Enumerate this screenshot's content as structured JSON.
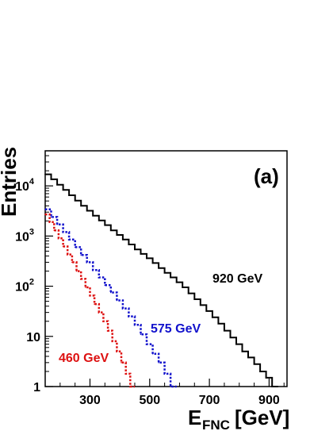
{
  "chart_data": {
    "type": "line",
    "panel_label": "(a)",
    "ylabel": "Entries",
    "xlabel_main": "E",
    "xlabel_sub": "FNC",
    "xlabel_unit": "[GeV]",
    "xlim": [
      150,
      960
    ],
    "ylim": [
      1,
      50000
    ],
    "yscale": "log",
    "grid": false,
    "x_ticks": [
      {
        "value": 300,
        "label": "300"
      },
      {
        "value": 500,
        "label": "500"
      },
      {
        "value": 700,
        "label": "700"
      },
      {
        "value": 900,
        "label": "900"
      }
    ],
    "y_ticks": [
      {
        "value": 1,
        "base": "1",
        "exp": ""
      },
      {
        "value": 10,
        "base": "10",
        "exp": ""
      },
      {
        "value": 100,
        "base": "10",
        "exp": "2"
      },
      {
        "value": 1000,
        "base": "10",
        "exp": "3"
      },
      {
        "value": 10000,
        "base": "10",
        "exp": "4"
      }
    ],
    "series": [
      {
        "name": "920 GeV",
        "color": "#000000",
        "style": "solid",
        "x": [
          150,
          170,
          190,
          210,
          230,
          250,
          270,
          290,
          310,
          330,
          350,
          370,
          390,
          410,
          430,
          450,
          470,
          490,
          510,
          530,
          550,
          570,
          590,
          610,
          630,
          650,
          670,
          690,
          710,
          730,
          750,
          770,
          790,
          810,
          830,
          850,
          870,
          890,
          910
        ],
        "y": [
          17000,
          13500,
          10500,
          8300,
          6500,
          5100,
          4000,
          3200,
          2550,
          2050,
          1650,
          1300,
          1050,
          850,
          680,
          540,
          440,
          360,
          290,
          230,
          185,
          150,
          120,
          95,
          72,
          55,
          42,
          32,
          24,
          18,
          13,
          9.5,
          7,
          5,
          3.8,
          2.8,
          2,
          1.5,
          1
        ]
      },
      {
        "name": "575 GeV",
        "color": "#1111cc",
        "style": "dotted",
        "x": [
          150,
          170,
          190,
          210,
          230,
          250,
          270,
          290,
          310,
          330,
          350,
          370,
          390,
          410,
          430,
          450,
          470,
          490,
          510,
          530,
          550,
          570
        ],
        "y": [
          3400,
          2400,
          1700,
          1200,
          850,
          600,
          420,
          300,
          210,
          150,
          105,
          75,
          52,
          36,
          25,
          17,
          11,
          7,
          4.5,
          3,
          1.8,
          1
        ]
      },
      {
        "name": "460 GeV",
        "color": "#dd1111",
        "style": "dotted",
        "x": [
          150,
          165,
          180,
          195,
          210,
          225,
          240,
          255,
          270,
          285,
          300,
          315,
          330,
          345,
          360,
          375,
          390,
          405,
          420,
          435
        ],
        "y": [
          2700,
          1900,
          1300,
          900,
          620,
          430,
          300,
          200,
          140,
          95,
          65,
          44,
          30,
          20,
          13,
          8,
          5,
          3,
          1.8,
          1
        ]
      }
    ],
    "series_labels": {
      "s920": "920 GeV",
      "s575": "575 GeV",
      "s460": "460 GeV"
    }
  }
}
